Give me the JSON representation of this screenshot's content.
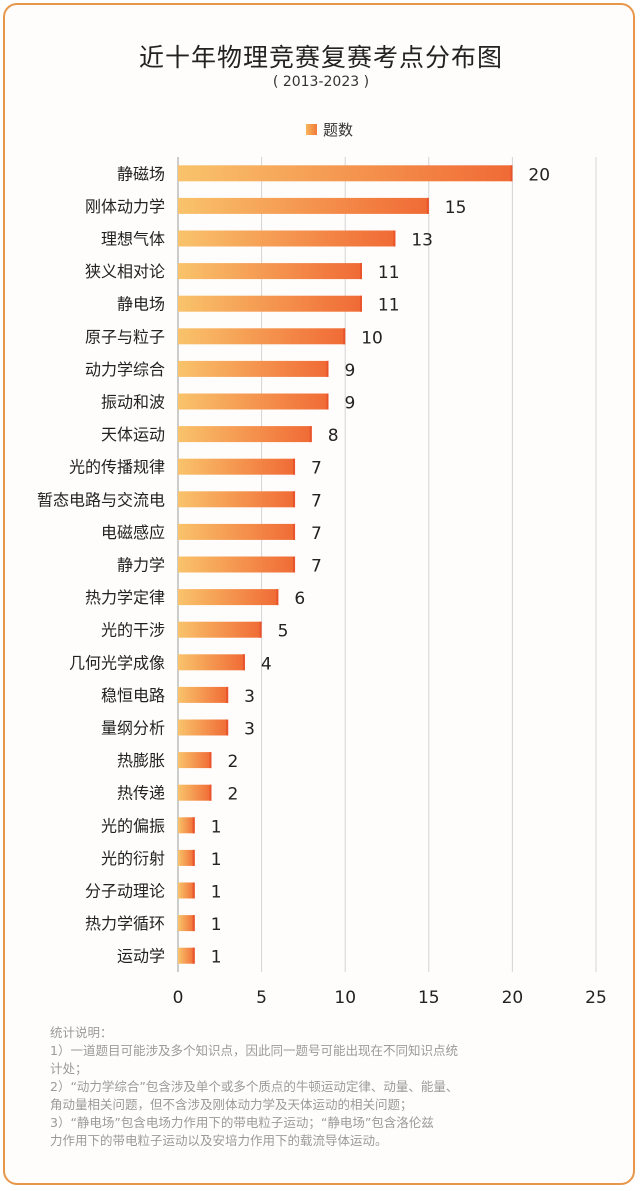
{
  "chart_data": {
    "type": "bar",
    "orientation": "horizontal",
    "title": "近十年物理竞赛复赛考点分布图",
    "subtitle": "( 2013-2023 )",
    "legend": [
      "题数"
    ],
    "legend_position": "top",
    "xlim": [
      0,
      25
    ],
    "xticks": [
      0,
      5,
      10,
      15,
      20,
      25
    ],
    "grid": true,
    "categories": [
      "静磁场",
      "刚体动力学",
      "理想气体",
      "狭义相对论",
      "静电场",
      "原子与粒子",
      "动力学综合",
      "振动和波",
      "天体运动",
      "光的传播规律",
      "暂态电路与交流电",
      "电磁感应",
      "静力学",
      "热力学定律",
      "光的干涉",
      "几何光学成像",
      "稳恒电路",
      "量纲分析",
      "热膨胀",
      "热传递",
      "光的偏振",
      "光的衍射",
      "分子动理论",
      "热力学循环",
      "运动学"
    ],
    "series": [
      {
        "name": "题数",
        "values": [
          20,
          15,
          13,
          11,
          11,
          10,
          9,
          9,
          8,
          7,
          7,
          7,
          7,
          6,
          5,
          4,
          3,
          3,
          2,
          2,
          1,
          1,
          1,
          1,
          1
        ]
      }
    ],
    "colors": {
      "bar_start": "#f9c36b",
      "bar_end": "#f06a35",
      "bar_tip": "#e9542c"
    }
  },
  "notes": {
    "heading": "统计说明：",
    "line1": "1）一道题目可能涉及多个知识点，因此同一题号可能出现在不同知识点统",
    "line1b": "计处；",
    "line2": "2）“动力学综合”包含涉及单个或多个质点的牛顿运动定律、动量、能量、",
    "line2b": "角动量相关问题，但不含涉及刚体动力学及天体运动的相关问题；",
    "line3": "3）“静电场”包含电场力作用下的带电粒子运动；“静电场”包含洛伦兹",
    "line3b": "力作用下的带电粒子运动以及安培力作用下的载流导体运动。"
  }
}
